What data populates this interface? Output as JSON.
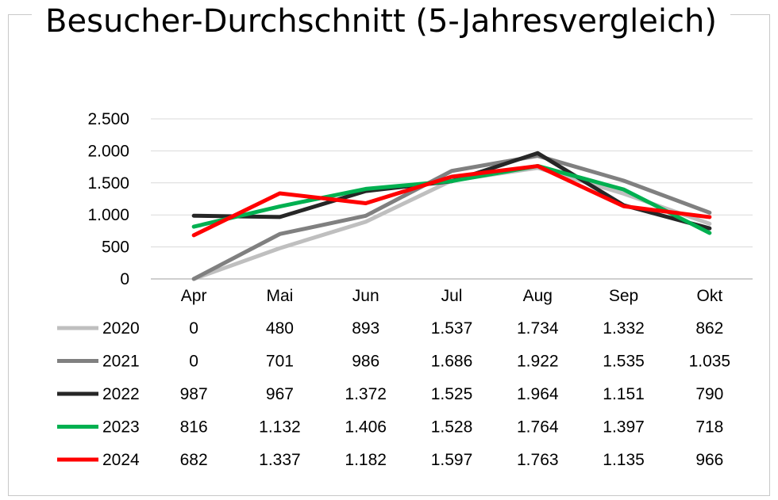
{
  "chart_data": {
    "type": "line",
    "title": "Besucher-Durchschnitt (5-Jahresvergleich)",
    "xlabel": "",
    "ylabel": "",
    "categories": [
      "Apr",
      "Mai",
      "Jun",
      "Jul",
      "Aug",
      "Sep",
      "Okt"
    ],
    "ylim": [
      0,
      2500
    ],
    "yticks": [
      0,
      500,
      1000,
      1500,
      2000,
      2500
    ],
    "ytick_labels": [
      "0",
      "500",
      "1.000",
      "1.500",
      "2.000",
      "2.500"
    ],
    "grid": true,
    "legend": "data-table-bottom",
    "series": [
      {
        "name": "2020",
        "color": "#bfbfbf",
        "values": [
          0,
          480,
          893,
          1537,
          1734,
          1332,
          862
        ],
        "labels": [
          "0",
          "480",
          "893",
          "1.537",
          "1.734",
          "1.332",
          "862"
        ]
      },
      {
        "name": "2021",
        "color": "#808080",
        "values": [
          0,
          701,
          986,
          1686,
          1922,
          1535,
          1035
        ],
        "labels": [
          "0",
          "701",
          "986",
          "1.686",
          "1.922",
          "1.535",
          "1.035"
        ]
      },
      {
        "name": "2022",
        "color": "#262626",
        "values": [
          987,
          967,
          1372,
          1525,
          1964,
          1151,
          790
        ],
        "labels": [
          "987",
          "967",
          "1.372",
          "1.525",
          "1.964",
          "1.151",
          "790"
        ]
      },
      {
        "name": "2023",
        "color": "#00b050",
        "values": [
          816,
          1132,
          1406,
          1528,
          1764,
          1397,
          718
        ],
        "labels": [
          "816",
          "1.132",
          "1.406",
          "1.528",
          "1.764",
          "1.397",
          "718"
        ]
      },
      {
        "name": "2024",
        "color": "#ff0000",
        "values": [
          682,
          1337,
          1182,
          1597,
          1763,
          1135,
          966
        ],
        "labels": [
          "682",
          "1.337",
          "1.182",
          "1.597",
          "1.763",
          "1.135",
          "966"
        ]
      }
    ]
  }
}
